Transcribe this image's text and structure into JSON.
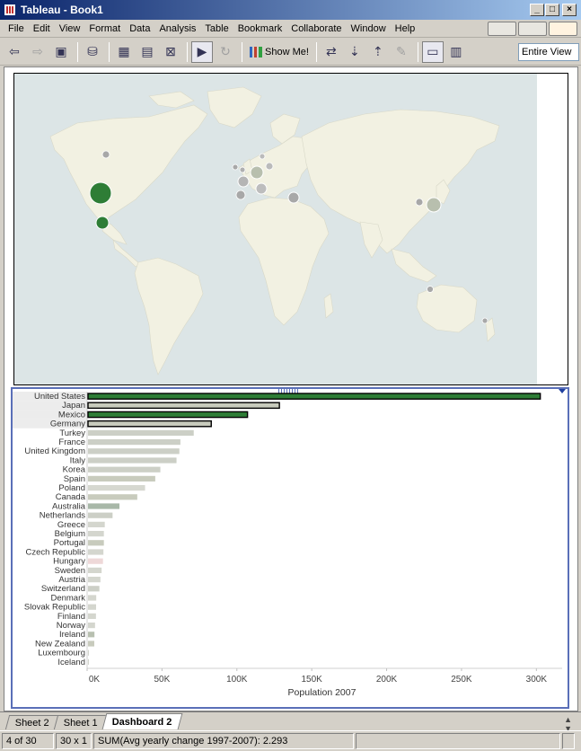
{
  "window": {
    "title": "Tableau - Book1",
    "controls": [
      "minimize-icon",
      "maximize-icon",
      "close-icon"
    ]
  },
  "menubar": {
    "items": [
      "File",
      "Edit",
      "View",
      "Format",
      "Data",
      "Analysis",
      "Table",
      "Bookmark",
      "Collaborate",
      "Window",
      "Help"
    ]
  },
  "toolbar": {
    "show_me_label": "Show Me!",
    "fit_value": "Entire View"
  },
  "map": {
    "colors": {
      "ocean": "#dce5e6",
      "land": "#f2f1e2",
      "high": "#2e7d36",
      "mid": "#b8bfae",
      "low": "#a8a8a8"
    }
  },
  "chart_data": {
    "type": "bar",
    "orientation": "horizontal",
    "categories": [
      "United States",
      "Japan",
      "Mexico",
      "Germany",
      "Turkey",
      "France",
      "United Kingdom",
      "Italy",
      "Korea",
      "Spain",
      "Poland",
      "Canada",
      "Australia",
      "Netherlands",
      "Greece",
      "Belgium",
      "Portugal",
      "Czech Republic",
      "Hungary",
      "Sweden",
      "Austria",
      "Switzerland",
      "Denmark",
      "Slovak Republic",
      "Finland",
      "Norway",
      "Ireland",
      "New Zealand",
      "Luxembourg",
      "Iceland"
    ],
    "values": [
      302000,
      127800,
      106500,
      82300,
      70600,
      61700,
      61000,
      59100,
      48300,
      44900,
      38100,
      32900,
      21000,
      16400,
      11200,
      10600,
      10600,
      10300,
      10000,
      9100,
      8300,
      7600,
      5500,
      5400,
      5300,
      4700,
      4300,
      4200,
      500,
      300
    ],
    "bar_colors": [
      "#2e7d36",
      "#c8cbbd",
      "#2e7d36",
      "#c8cbbd",
      "#cccfc6",
      "#cccfc6",
      "#cccfc6",
      "#cccfc6",
      "#cccfc6",
      "#c8cbbd",
      "#d6d8d0",
      "#c8cbbd",
      "#a8b8a8",
      "#cccfc6",
      "#d4d6ce",
      "#d4d6ce",
      "#c8cbbd",
      "#d4d6ce",
      "#eed8d8",
      "#d4d6ce",
      "#d4d6ce",
      "#cccfc6",
      "#d4d6ce",
      "#d4d6ce",
      "#d4d6ce",
      "#d4d6ce",
      "#b8c0b0",
      "#c8cbbd",
      "#d4d6ce",
      "#d4d6ce"
    ],
    "selected": [
      "United States",
      "Japan",
      "Mexico",
      "Germany"
    ],
    "xlabel": "Population 2007",
    "xticks": [
      "0K",
      "50K",
      "100K",
      "150K",
      "200K",
      "250K",
      "300K"
    ],
    "xtick_values": [
      0,
      50000,
      100000,
      150000,
      200000,
      250000,
      300000
    ],
    "xlim": [
      0,
      310000
    ]
  },
  "sheet_tabs": [
    "Sheet 2",
    "Sheet 1",
    "Dashboard 2"
  ],
  "status": {
    "marks": "4 of 30",
    "dims": "30 x 1",
    "summary": "SUM(Avg yearly change 1997-2007): 2.293"
  }
}
